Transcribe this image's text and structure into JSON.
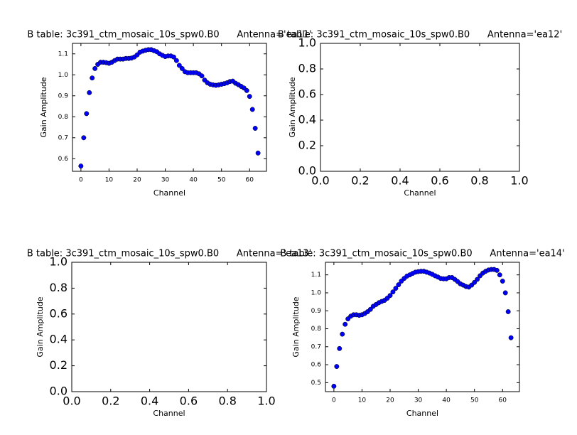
{
  "chart_data": [
    {
      "type": "scatter",
      "title": "B table: 3c391_ctm_mosaic_10s_spw0.B0      Antenna='ea11'",
      "x_label": "Channel",
      "y_label": "Gain Amplitude",
      "x": [
        0,
        1,
        2,
        3,
        4,
        5,
        6,
        7,
        8,
        9,
        10,
        11,
        12,
        13,
        14,
        15,
        16,
        17,
        18,
        19,
        20,
        21,
        22,
        23,
        24,
        25,
        26,
        27,
        28,
        29,
        30,
        31,
        32,
        33,
        34,
        35,
        36,
        37,
        38,
        39,
        40,
        41,
        42,
        43,
        44,
        45,
        46,
        47,
        48,
        49,
        50,
        51,
        52,
        53,
        54,
        55,
        56,
        57,
        58,
        59,
        60,
        61,
        62,
        63
      ],
      "series": [
        {
          "color": "#0000ff",
          "values": [
            0.565,
            0.7,
            0.815,
            0.915,
            0.985,
            1.03,
            1.05,
            1.06,
            1.06,
            1.058,
            1.055,
            1.06,
            1.068,
            1.075,
            1.075,
            1.075,
            1.078,
            1.078,
            1.08,
            1.085,
            1.095,
            1.108,
            1.113,
            1.117,
            1.12,
            1.12,
            1.115,
            1.11,
            1.1,
            1.093,
            1.087,
            1.09,
            1.09,
            1.085,
            1.068,
            1.045,
            1.03,
            1.015,
            1.01,
            1.01,
            1.01,
            1.01,
            1.005,
            0.995,
            0.975,
            0.962,
            0.955,
            0.952,
            0.95,
            0.952,
            0.955,
            0.958,
            0.962,
            0.968,
            0.97,
            0.96,
            0.953,
            0.945,
            0.937,
            0.925,
            0.897,
            0.835,
            0.745,
            0.627
          ]
        }
      ],
      "xlim": [
        -3,
        66
      ],
      "xticks": [
        0,
        10,
        20,
        30,
        40,
        50,
        60
      ],
      "ylim": [
        0.54,
        1.15
      ],
      "yticks": [
        0.6,
        0.7,
        0.8,
        0.9,
        {
          "value": 1,
          "label": "1.0"
        },
        1.1
      ],
      "grid": false
    },
    {
      "type": "scatter",
      "title": "B table: 3c391_ctm_mosaic_10s_spw0.B0      Antenna='ea12'",
      "x_label": "Channel",
      "y_label": "Gain Amplitude",
      "xlim": [
        0,
        1
      ],
      "xticks": [
        {
          "value": 0,
          "label": "0.0"
        },
        0.2,
        0.4,
        0.6,
        0.8,
        {
          "value": 1,
          "label": "1.0"
        }
      ],
      "ylim": [
        0,
        1
      ],
      "yticks": [
        {
          "value": 0,
          "label": "0.0"
        },
        0.2,
        0.4,
        0.6,
        0.8,
        {
          "value": 1,
          "label": "1.0"
        }
      ],
      "grid": false
    },
    {
      "type": "scatter",
      "title": "B table: 3c391_ctm_mosaic_10s_spw0.B0      Antenna='ea13'",
      "x_label": "Channel",
      "y_label": "Gain Amplitude",
      "xlim": [
        0,
        1
      ],
      "xticks": [
        {
          "value": 0,
          "label": "0.0"
        },
        0.2,
        0.4,
        0.6,
        0.8,
        {
          "value": 1,
          "label": "1.0"
        }
      ],
      "ylim": [
        0,
        1
      ],
      "yticks": [
        {
          "value": 0,
          "label": "0.0"
        },
        0.2,
        0.4,
        0.6,
        0.8,
        {
          "value": 1,
          "label": "1.0"
        }
      ],
      "grid": false
    },
    {
      "type": "scatter",
      "title": "B table: 3c391_ctm_mosaic_10s_spw0.B0      Antenna='ea14'",
      "x_label": "Channel",
      "y_label": "Gain Amplitude",
      "x": [
        0,
        1,
        2,
        3,
        4,
        5,
        6,
        7,
        8,
        9,
        10,
        11,
        12,
        13,
        14,
        15,
        16,
        17,
        18,
        19,
        20,
        21,
        22,
        23,
        24,
        25,
        26,
        27,
        28,
        29,
        30,
        31,
        32,
        33,
        34,
        35,
        36,
        37,
        38,
        39,
        40,
        41,
        42,
        43,
        44,
        45,
        46,
        47,
        48,
        49,
        50,
        51,
        52,
        53,
        54,
        55,
        56,
        57,
        58,
        59,
        60,
        61,
        62,
        63
      ],
      "series": [
        {
          "color": "#0000ff",
          "values": [
            0.48,
            0.59,
            0.69,
            0.77,
            0.825,
            0.855,
            0.87,
            0.878,
            0.878,
            0.875,
            0.878,
            0.885,
            0.895,
            0.908,
            0.925,
            0.935,
            0.945,
            0.952,
            0.958,
            0.97,
            0.985,
            1.005,
            1.025,
            1.045,
            1.065,
            1.08,
            1.093,
            1.1,
            1.108,
            1.115,
            1.118,
            1.12,
            1.12,
            1.115,
            1.11,
            1.103,
            1.095,
            1.088,
            1.08,
            1.078,
            1.078,
            1.085,
            1.085,
            1.075,
            1.063,
            1.05,
            1.043,
            1.035,
            1.032,
            1.043,
            1.058,
            1.075,
            1.095,
            1.11,
            1.12,
            1.127,
            1.13,
            1.13,
            1.125,
            1.1,
            1.065,
            1.0,
            0.895,
            0.75
          ]
        }
      ],
      "xlim": [
        -3,
        66
      ],
      "xticks": [
        0,
        10,
        20,
        30,
        40,
        50,
        60
      ],
      "ylim": [
        0.45,
        1.17
      ],
      "yticks": [
        0.5,
        0.6,
        0.7,
        0.8,
        0.9,
        {
          "value": 1,
          "label": "1.0"
        },
        1.1
      ],
      "grid": false
    }
  ]
}
